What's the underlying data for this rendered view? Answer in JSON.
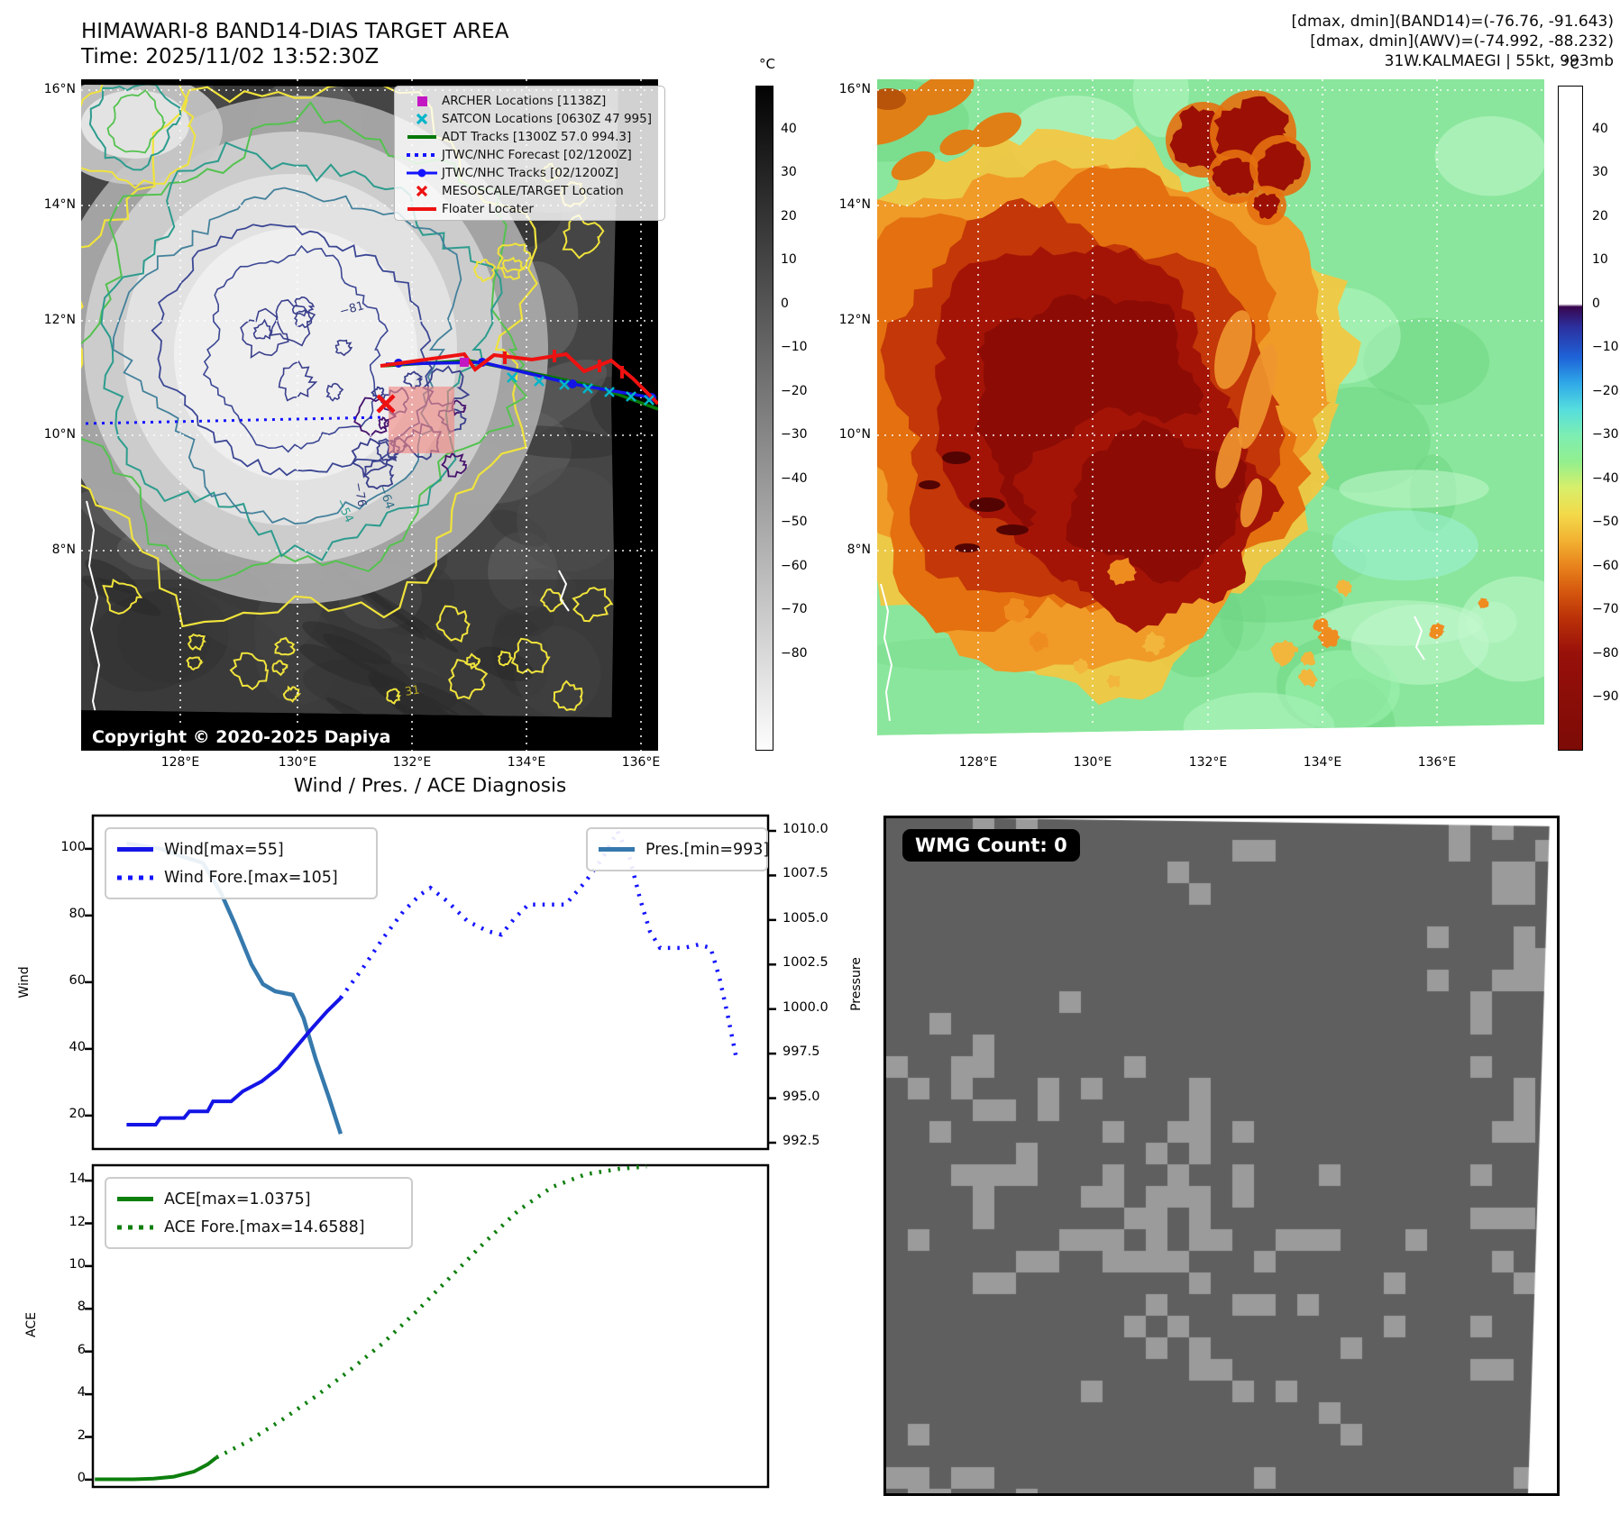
{
  "panel_tl": {
    "title": "HIMAWARI-8 BAND14-DIAS TARGET AREA",
    "subtitle": "Time: 2025/11/02 13:52:30Z",
    "copyright": "Copyright © 2020-2025 Dapiya",
    "colorbar_unit": "°C",
    "colorbar_ticks": [
      "40",
      "30",
      "20",
      "10",
      "0",
      "−10",
      "−20",
      "−30",
      "−40",
      "−50",
      "−60",
      "−70",
      "−80"
    ],
    "lat_ticks": [
      "16°N",
      "14°N",
      "12°N",
      "10°N",
      "8°N"
    ],
    "lon_ticks": [
      "128°E",
      "130°E",
      "132°E",
      "134°E",
      "136°E"
    ],
    "contour_labels": [
      "−81",
      "−76",
      "−64",
      "−54",
      "31"
    ],
    "legend": [
      {
        "label": "ARCHER Locations [1138Z]",
        "marker": "square",
        "color": "#c317c3"
      },
      {
        "label": "SATCON Locations [0630Z 47 995]",
        "marker": "x",
        "color": "#00b5c9"
      },
      {
        "label": "ADT Tracks [1300Z 57.0 994.3]",
        "marker": "line",
        "color": "#067806"
      },
      {
        "label": "JTWC/NHC Forecast [02/1200Z]",
        "marker": "dotted",
        "color": "#1414ff"
      },
      {
        "label": "JTWC/NHC Tracks [02/1200Z]",
        "marker": "line-dot",
        "color": "#1414ff"
      },
      {
        "label": "MESOSCALE/TARGET Location",
        "marker": "x",
        "color": "#ee1111"
      },
      {
        "label": "Floater Locater",
        "marker": "line",
        "color": "#ee1111"
      }
    ]
  },
  "panel_tr": {
    "header_line1": "[dmax, dmin](BAND14)=(-76.76, -91.643)",
    "header_line2": "[dmax, dmin](AWV)=(-74.992, -88.232)",
    "header_line3": "31W.KALMAEGI | 55kt, 993mb",
    "colorbar_unit": "°C",
    "colorbar_ticks": [
      "40",
      "30",
      "20",
      "10",
      "0",
      "−10",
      "−20",
      "−30",
      "−40",
      "−50",
      "−60",
      "−70",
      "−80",
      "−90"
    ],
    "lat_ticks": [
      "16°N",
      "14°N",
      "12°N",
      "10°N",
      "8°N"
    ],
    "lon_ticks": [
      "128°E",
      "130°E",
      "132°E",
      "134°E",
      "136°E"
    ]
  },
  "panel_bl": {
    "title": "Wind / Pres. / ACE Diagnosis"
  },
  "panel_br": {
    "wmg_label": "WMG Count: 0"
  },
  "chart_data": [
    {
      "type": "line",
      "title": "Wind / Pres. / ACE Diagnosis",
      "xlabel": "",
      "ylabel": "Wind",
      "y2label": "Pressure",
      "ylim": [
        9.7,
        109.7
      ],
      "y2lim": [
        992.15,
        1010.86
      ],
      "yticks": [
        "100",
        "80",
        "60",
        "40",
        "20"
      ],
      "y2ticks": [
        "1010.0",
        "1007.5",
        "1005.0",
        "1002.5",
        "1000.0",
        "997.5",
        "995.0",
        "992.5"
      ],
      "grid": false,
      "legend_position": "upper left and upper right",
      "series": [
        {
          "name": "Wind[max=55]",
          "axis": "y",
          "style": "solid",
          "color": "#1414e6",
          "x_frac": [
            0.05,
            0.093,
            0.1,
            0.135,
            0.143,
            0.17,
            0.178,
            0.205,
            0.222,
            0.25,
            0.275,
            0.3,
            0.325,
            0.347,
            0.367
          ],
          "values": [
            17,
            17,
            19,
            19,
            21,
            21,
            24,
            24,
            27,
            30,
            34,
            40,
            46,
            51,
            55
          ]
        },
        {
          "name": "Wind Fore.[max=105]",
          "axis": "y",
          "style": "dotted",
          "color": "#1414ff",
          "x_frac": [
            0.367,
            0.4,
            0.43,
            0.46,
            0.485,
            0.5,
            0.525,
            0.555,
            0.585,
            0.605,
            0.625,
            0.645,
            0.7,
            0.73,
            0.755,
            0.777,
            0.795,
            0.81,
            0.825,
            0.84,
            0.875,
            0.897,
            0.915,
            0.928,
            0.94,
            0.954
          ],
          "values": [
            55,
            64,
            73,
            81,
            86,
            88,
            84,
            78,
            75,
            74,
            79,
            83,
            83,
            90,
            97,
            105,
            97,
            85,
            75,
            70,
            70,
            71,
            70,
            61,
            50,
            36
          ]
        },
        {
          "name": "Pres.[min=993]",
          "axis": "y2",
          "style": "solid",
          "color": "#3579ad",
          "x_frac": [
            0.05,
            0.1,
            0.13,
            0.163,
            0.19,
            0.21,
            0.235,
            0.252,
            0.27,
            0.296,
            0.312,
            0.33,
            0.35,
            0.367
          ],
          "values": [
            1009.3,
            1009.0,
            1008.6,
            1008.2,
            1006.5,
            1004.8,
            1002.5,
            1001.4,
            1001.0,
            1000.8,
            999.5,
            997.2,
            995.0,
            993.0
          ]
        }
      ]
    },
    {
      "type": "line",
      "title": "",
      "xlabel": "",
      "ylabel": "ACE",
      "ylim": [
        -0.34,
        14.72
      ],
      "yticks": [
        "14",
        "12",
        "10",
        "8",
        "6",
        "4",
        "2",
        "0"
      ],
      "grid": false,
      "legend_position": "upper left",
      "series": [
        {
          "name": "ACE[max=1.0375]",
          "axis": "y",
          "style": "solid",
          "color": "#0d7f0d",
          "x_frac": [
            0.003,
            0.06,
            0.09,
            0.12,
            0.15,
            0.17,
            0.183
          ],
          "values": [
            0.02,
            0.02,
            0.05,
            0.14,
            0.38,
            0.72,
            1.04
          ]
        },
        {
          "name": "ACE Fore.[max=14.6588]",
          "axis": "y",
          "style": "dotted",
          "color": "#0d7f0d",
          "x_frac": [
            0.183,
            0.23,
            0.28,
            0.33,
            0.38,
            0.43,
            0.48,
            0.53,
            0.58,
            0.63,
            0.68,
            0.73,
            0.78,
            0.82
          ],
          "values": [
            1.04,
            1.8,
            2.8,
            3.9,
            5.1,
            6.4,
            7.9,
            9.5,
            11.1,
            12.6,
            13.7,
            14.3,
            14.55,
            14.66
          ]
        }
      ]
    }
  ]
}
